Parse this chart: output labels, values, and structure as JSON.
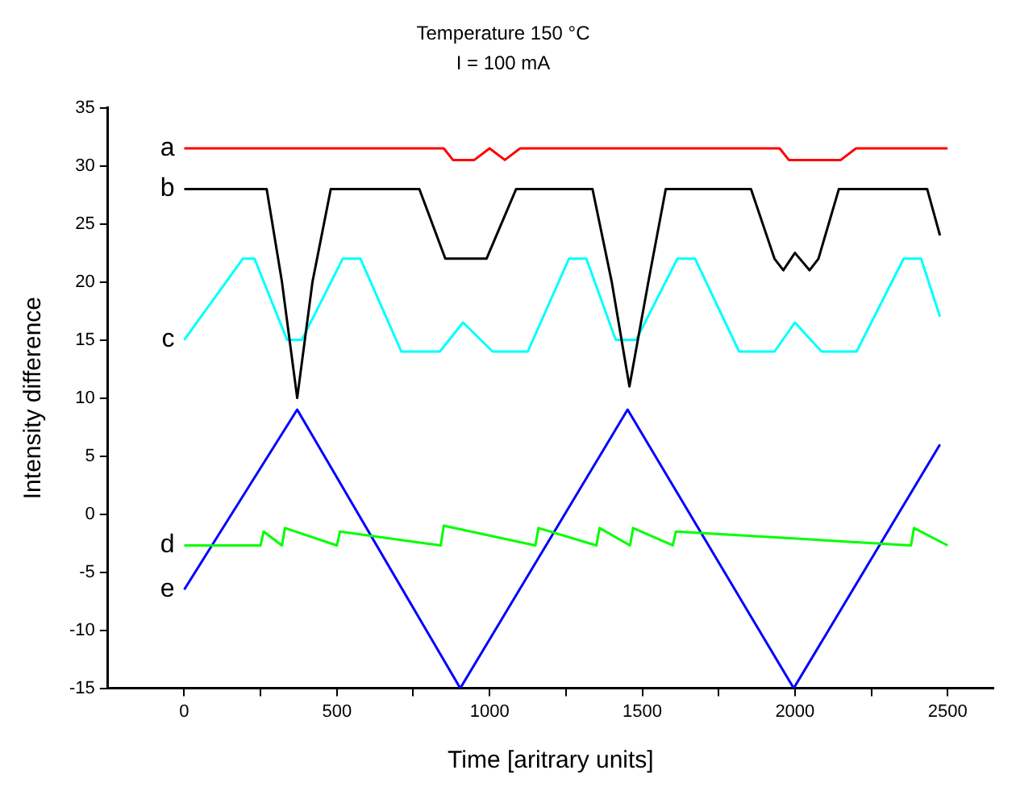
{
  "chart_data": {
    "type": "line",
    "title": "Temperature 150 °C",
    "subtitle": "I = 100 mA",
    "xlabel": "Time [aritrary units]",
    "ylabel": "Intensity difference",
    "xlim": [
      -250,
      2650
    ],
    "xticks": [
      0,
      {
        "value": 250,
        "label": null
      },
      500,
      {
        "value": 750,
        "label": null
      },
      1000,
      {
        "value": 1250,
        "label": null
      },
      1500,
      {
        "value": 1750,
        "label": null
      },
      2000,
      {
        "value": 2250,
        "label": null
      },
      2500
    ],
    "ylim": [
      -15,
      35
    ],
    "yticks": [
      -15,
      -10,
      -5,
      0,
      5,
      10,
      15,
      20,
      25,
      30,
      35
    ],
    "grid": false,
    "legend": false,
    "marker": "none",
    "line_style": "solid",
    "series": [
      {
        "name": "a",
        "color": "#ff0000",
        "x": [
          0,
          100,
          200,
          300,
          400,
          500,
          600,
          700,
          800,
          850,
          880,
          900,
          950,
          1000,
          1050,
          1100,
          1150,
          1200,
          1300,
          1400,
          1500,
          1600,
          1700,
          1800,
          1900,
          1950,
          1980,
          2000,
          2050,
          2100,
          2150,
          2200,
          2300,
          2400,
          2500
        ],
        "values": [
          31.5,
          31.5,
          31.5,
          31.5,
          31.5,
          31.5,
          31.5,
          31.5,
          31.5,
          31.5,
          30.5,
          30.5,
          30.5,
          31.5,
          30.5,
          31.5,
          31.5,
          31.5,
          31.5,
          31.5,
          31.5,
          31.5,
          31.5,
          31.5,
          31.5,
          31.5,
          30.5,
          30.5,
          30.5,
          30.5,
          30.5,
          31.5,
          31.5,
          31.5,
          31.5
        ]
      },
      {
        "name": "b",
        "color": "#000000",
        "x": [
          0,
          270,
          320,
          370,
          420,
          480,
          770,
          855,
          990,
          1087,
          1337,
          1400,
          1458,
          1520,
          1577,
          1856,
          1933,
          1962,
          2000,
          2048,
          2077,
          2144,
          2433,
          2475
        ],
        "values": [
          28,
          28,
          20,
          10,
          20,
          28,
          28,
          22,
          22,
          28,
          28,
          20,
          11,
          20,
          28,
          28,
          22,
          21,
          22.5,
          21,
          22,
          28,
          28,
          24
        ]
      },
      {
        "name": "c",
        "color": "#00ffff",
        "x": [
          0,
          192,
          230,
          337,
          385,
          519,
          577,
          711,
          837,
          913,
          1010,
          1125,
          1260,
          1317,
          1413,
          1480,
          1615,
          1673,
          1817,
          1933,
          2000,
          2087,
          2202,
          2356,
          2413,
          2475
        ],
        "values": [
          15,
          22,
          22,
          15,
          15,
          22,
          22,
          14,
          14,
          16.5,
          14,
          14,
          22,
          22,
          15,
          15,
          22,
          22,
          14,
          14,
          16.5,
          14,
          14,
          22,
          22,
          17
        ]
      },
      {
        "name": "d",
        "color": "#00ff00",
        "x": [
          0,
          250,
          260,
          320,
          330,
          500,
          510,
          840,
          850,
          1150,
          1160,
          1350,
          1360,
          1460,
          1470,
          1600,
          1610,
          2380,
          2390,
          2500
        ],
        "values": [
          -2.7,
          -2.7,
          -1.5,
          -2.7,
          -1.2,
          -2.7,
          -1.5,
          -2.7,
          -1.0,
          -2.7,
          -1.2,
          -2.7,
          -1.2,
          -2.7,
          -1.2,
          -2.7,
          -1.5,
          -2.7,
          -1.2,
          -2.7
        ]
      },
      {
        "name": "e",
        "color": "#0000ff",
        "x": [
          0,
          370,
          904,
          1452,
          1996,
          2475
        ],
        "values": [
          -6.5,
          9,
          -15,
          9,
          -15,
          6
        ]
      }
    ]
  }
}
